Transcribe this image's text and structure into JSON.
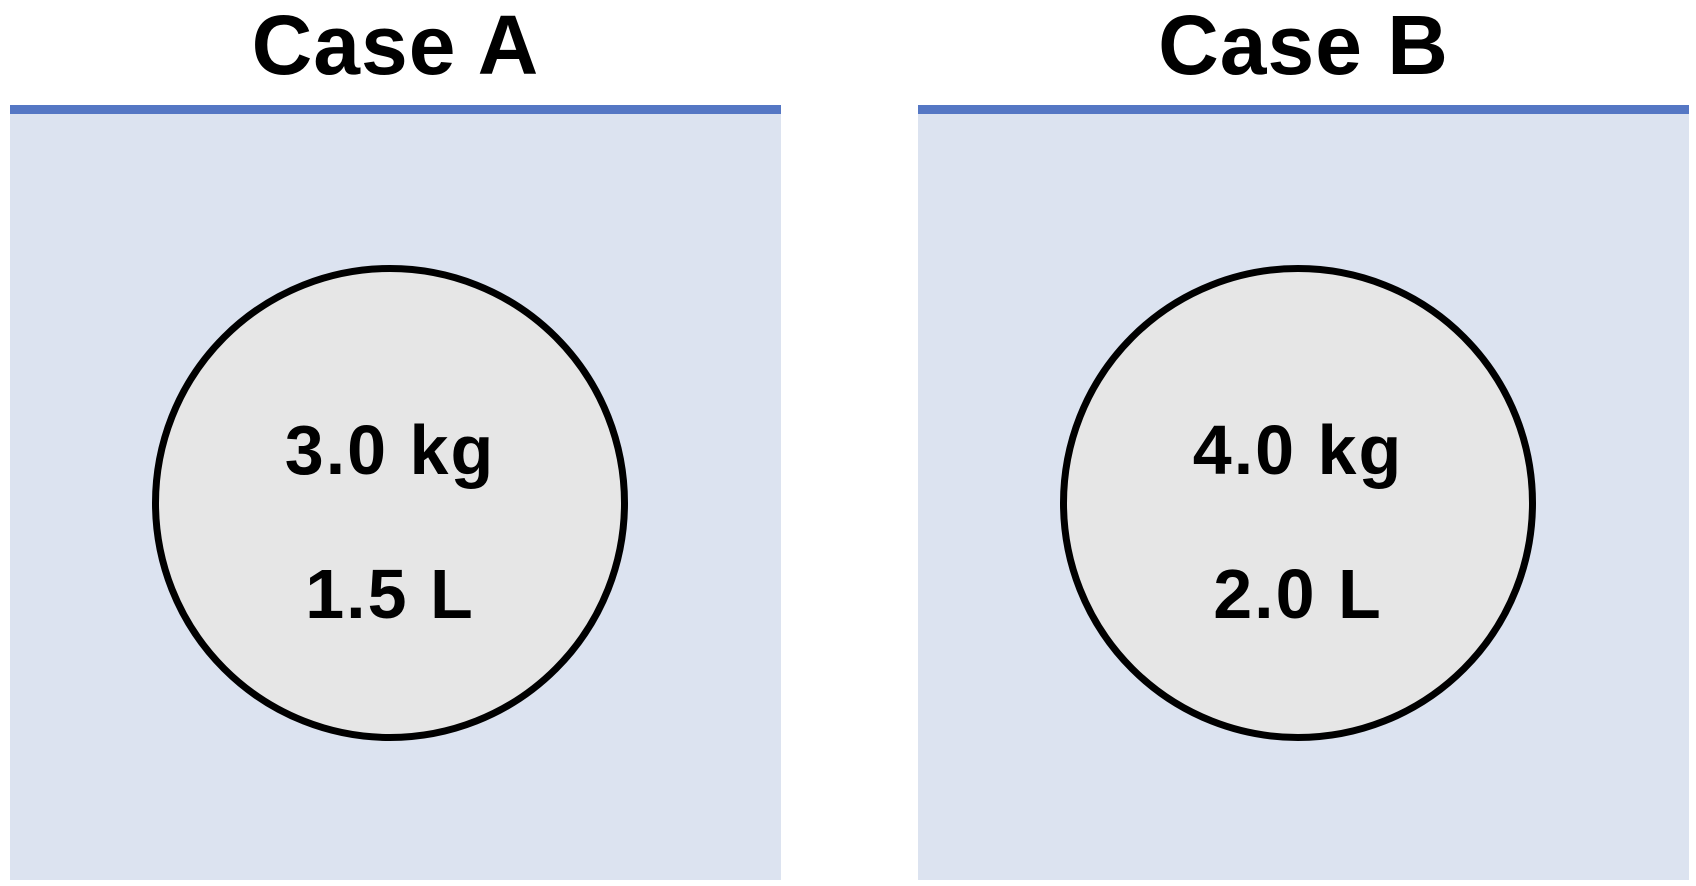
{
  "colors": {
    "liquid": "#dce3f0",
    "surface": "#5577c4",
    "object_fill": "#e6e6e6"
  },
  "cases": [
    {
      "title": "Case A",
      "mass": "3.0 kg",
      "volume": "1.5 L"
    },
    {
      "title": "Case B",
      "mass": "4.0 kg",
      "volume": "2.0 L"
    }
  ]
}
